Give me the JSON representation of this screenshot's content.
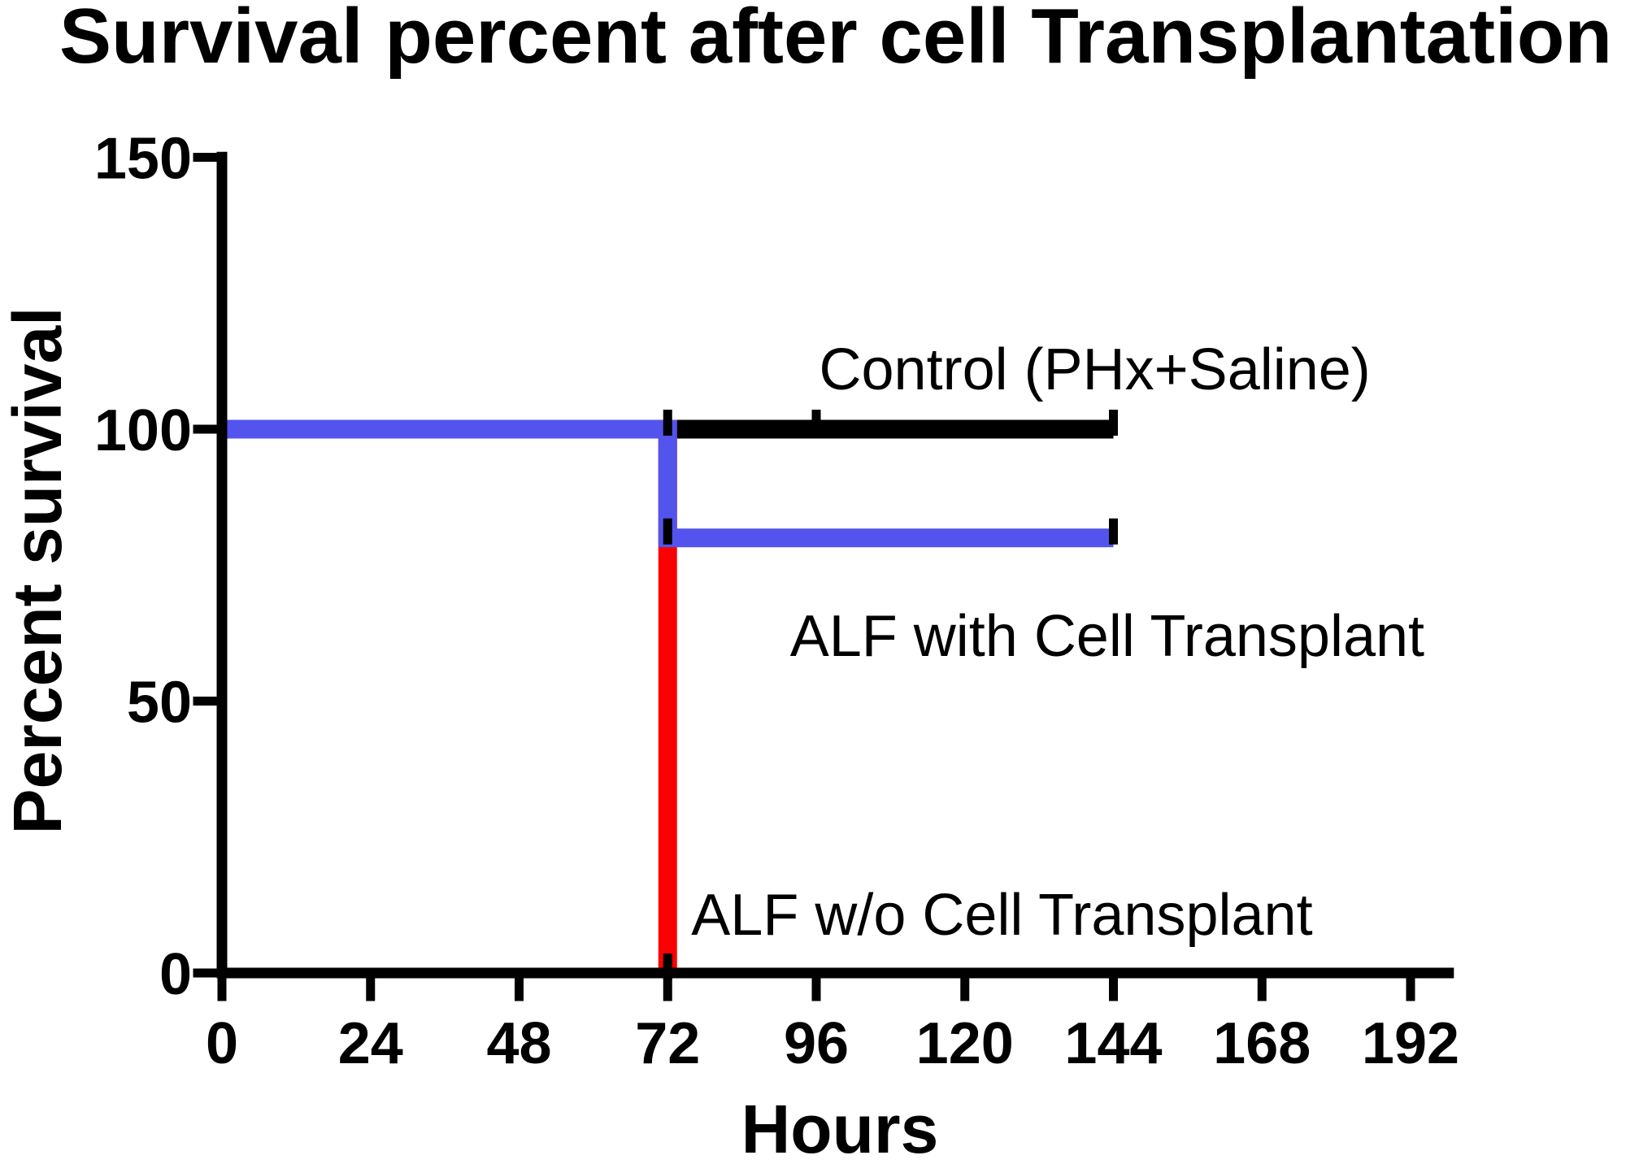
{
  "title": "Survival percent after cell Transplantation",
  "colors": {
    "control": "#000000",
    "alf_without_transplant": "#fb0000",
    "alf_with_transplant": "#5353ee",
    "axis": "#000000",
    "background": "#ffffff"
  },
  "chart_data": {
    "type": "line",
    "subtype": "kaplan-meier-step",
    "title": "Survival percent after cell Transplantation",
    "xlabel": "Hours",
    "ylabel": "Percent survival",
    "xlim": [
      0,
      199
    ],
    "ylim": [
      0,
      151
    ],
    "x_ticks": [
      0,
      24,
      48,
      72,
      96,
      120,
      144,
      168,
      192
    ],
    "y_ticks": [
      0,
      50,
      100,
      150
    ],
    "grid": false,
    "legend_position": "inline-annotations",
    "series": [
      {
        "name": "Control (PHx+Saline)",
        "color": "#000000",
        "points": [
          [
            0,
            100
          ],
          [
            144,
            100
          ]
        ]
      },
      {
        "name": "ALF w/o Cell Transplant",
        "color": "#fb0000",
        "points": [
          [
            0,
            100
          ],
          [
            72,
            100
          ],
          [
            72,
            0
          ]
        ]
      },
      {
        "name": "ALF with Cell Transplant",
        "color": "#5353ee",
        "points": [
          [
            0,
            100
          ],
          [
            72,
            100
          ],
          [
            72,
            80
          ],
          [
            144,
            80
          ]
        ]
      }
    ],
    "event_marks": [
      {
        "x": 72,
        "y": 100
      },
      {
        "x": 96,
        "y": 100
      },
      {
        "x": 144,
        "y": 100
      },
      {
        "x": 72,
        "y": 80
      },
      {
        "x": 144,
        "y": 80
      },
      {
        "x": 72,
        "y": 0
      }
    ],
    "annotations": [
      {
        "text": "Control (PHx+Saline)",
        "x": 141,
        "y": 107.3
      },
      {
        "text": "ALF with Cell Transplant",
        "x": 143,
        "y": 58.3
      },
      {
        "text": "ALF w/o Cell Transplant",
        "x": 126,
        "y": 7.0
      }
    ]
  }
}
